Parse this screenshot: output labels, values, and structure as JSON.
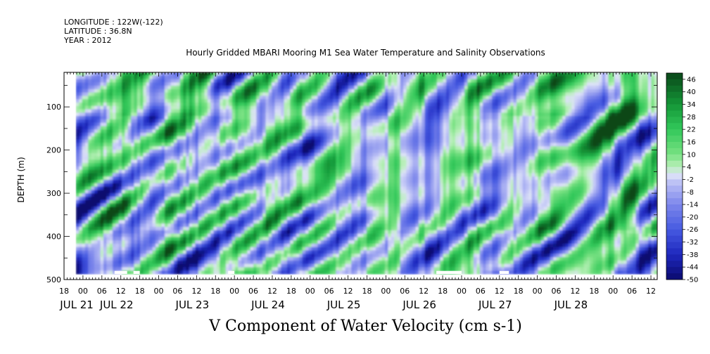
{
  "header": {
    "longitude": "LONGITUDE : 122W(-122)",
    "latitude": "LATITUDE : 36.8N",
    "year": "YEAR : 2012"
  },
  "chart_data": {
    "type": "heatmap",
    "title": "Hourly Gridded MBARI Mooring M1 Sea Water Temperature and Salinity Observations",
    "xlabel": "V Component of Water Velocity (cm s-1)",
    "ylabel": "DEPTH (m)",
    "x_start_label": "JUL 21 18",
    "x_hours": [
      18,
      0,
      6,
      12,
      18,
      0,
      6,
      12,
      18,
      0,
      6,
      12,
      18,
      0,
      6,
      12,
      18,
      0,
      6,
      12,
      18,
      0,
      6,
      12,
      18,
      0,
      6,
      12,
      18,
      0,
      6,
      12
    ],
    "day_labels": [
      "JUL 21",
      "JUL 22",
      "JUL 23",
      "JUL 24",
      "JUL 25",
      "JUL 26",
      "JUL 27",
      "JUL 28"
    ],
    "y_ticks": [
      100,
      200,
      300,
      400,
      500
    ],
    "y_tick_labels": [
      "100",
      "200",
      "300",
      "400",
      "500"
    ],
    "ylim": [
      20,
      500
    ],
    "y_reversed": true,
    "data_depth_range": [
      20,
      487
    ],
    "colorbar": {
      "labels": [
        "46",
        "40",
        "34",
        "28",
        "22",
        "16",
        "10",
        "4",
        "-2",
        "-8",
        "-14",
        "-20",
        "-26",
        "-32",
        "-38",
        "-44",
        "-50"
      ],
      "range": [
        -50,
        49
      ],
      "step": 3
    },
    "colors": {
      "negative_strong": "#1a1aa8",
      "negative_mid": "#6f78e0",
      "negative_weak": "#b6bcf2",
      "positive_weak": "#b6f0b0",
      "positive_mid": "#3fd864",
      "positive_strong": "#137a2c"
    }
  }
}
